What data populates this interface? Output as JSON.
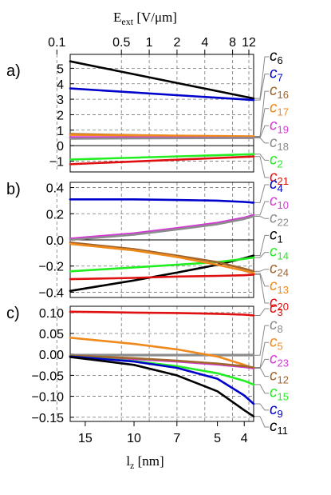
{
  "figure": {
    "top_axis": {
      "label_main": "E",
      "label_sub": "ext",
      "label_unit": " [V/μm]",
      "ticks": [
        "0.1",
        "0.5",
        "1",
        "2",
        "4",
        "8",
        "12"
      ]
    },
    "bottom_axis": {
      "label_main": "l",
      "label_sub": "z",
      "label_unit": " [nm]",
      "ticks": [
        "15",
        "10",
        "7",
        "5",
        "4"
      ]
    }
  },
  "chart_data": [
    {
      "panel": "a)",
      "type": "line",
      "xlabel": "l_z [nm]",
      "x_top_label": "E_ext [V/μm]",
      "x_range_nm": [
        17,
        3.7
      ],
      "ylim": [
        -1.7,
        5.9
      ],
      "y_ticks": [
        -1,
        0,
        1,
        2,
        3,
        4,
        5
      ],
      "y_tick_labels": [
        "−1",
        "0",
        "1",
        "2",
        "3",
        "4",
        "5"
      ],
      "grid": "dashed",
      "series": [
        {
          "name": "c",
          "sub": "6",
          "color": "#000000",
          "x": [
            17,
            3.7
          ],
          "y": [
            5.45,
            3.05
          ]
        },
        {
          "name": "c",
          "sub": "7",
          "color": "#0000cc",
          "x": [
            17,
            3.7
          ],
          "y": [
            3.7,
            2.95
          ]
        },
        {
          "name": "c",
          "sub": "16",
          "color": "#a0642d",
          "x": [
            17,
            3.7
          ],
          "y": [
            0.75,
            0.55
          ]
        },
        {
          "name": "c",
          "sub": "17",
          "color": "#f08a1c",
          "x": [
            17,
            3.7
          ],
          "y": [
            0.7,
            0.6
          ]
        },
        {
          "name": "c",
          "sub": "19",
          "color": "#d43ad4",
          "x": [
            17,
            3.7
          ],
          "y": [
            0.55,
            0.5
          ]
        },
        {
          "name": "c",
          "sub": "18",
          "color": "#8c8c8c",
          "x": [
            17,
            3.7
          ],
          "y": [
            0.45,
            0.5
          ]
        },
        {
          "name": "c",
          "sub": "2",
          "color": "#22ee22",
          "x": [
            17,
            3.7
          ],
          "y": [
            -0.9,
            -0.55
          ]
        },
        {
          "name": "c",
          "sub": "21",
          "color": "#e01010",
          "x": [
            17,
            3.7
          ],
          "y": [
            -1.2,
            -0.7
          ]
        }
      ]
    },
    {
      "panel": "b)",
      "type": "line",
      "xlabel": "l_z [nm]",
      "x_range_nm": [
        17,
        3.7
      ],
      "ylim": [
        -0.44,
        0.44
      ],
      "y_ticks": [
        -0.4,
        -0.2,
        0.0,
        0.2,
        0.4
      ],
      "y_tick_labels": [
        "−0.4",
        "−0.2",
        "0.0",
        "0.2",
        "0.4"
      ],
      "grid": "dashed",
      "series": [
        {
          "name": "c",
          "sub": "4",
          "color": "#0000cc",
          "x": [
            17,
            10,
            7,
            5,
            4,
            3.7
          ],
          "y": [
            0.31,
            0.31,
            0.305,
            0.3,
            0.29,
            0.285
          ]
        },
        {
          "name": "c",
          "sub": "10",
          "color": "#d43ad4",
          "x": [
            17,
            10,
            7,
            5,
            4,
            3.7
          ],
          "y": [
            0.01,
            0.05,
            0.09,
            0.13,
            0.17,
            0.19
          ]
        },
        {
          "name": "c",
          "sub": "22",
          "color": "#8c8c8c",
          "x": [
            17,
            10,
            7,
            5,
            4,
            3.7
          ],
          "y": [
            0.0,
            0.04,
            0.08,
            0.12,
            0.16,
            0.18
          ]
        },
        {
          "name": "c",
          "sub": "1",
          "color": "#000000",
          "x": [
            17,
            10,
            7,
            5,
            4,
            3.7
          ],
          "y": [
            -0.39,
            -0.31,
            -0.25,
            -0.19,
            -0.14,
            -0.12
          ]
        },
        {
          "name": "c",
          "sub": "14",
          "color": "#22ee22",
          "x": [
            17,
            10,
            7,
            5,
            4,
            3.7
          ],
          "y": [
            -0.24,
            -0.21,
            -0.19,
            -0.17,
            -0.145,
            -0.135
          ]
        },
        {
          "name": "c",
          "sub": "24",
          "color": "#a0642d",
          "x": [
            17,
            10,
            7,
            5,
            4,
            3.7
          ],
          "y": [
            -0.02,
            -0.07,
            -0.12,
            -0.17,
            -0.22,
            -0.24
          ]
        },
        {
          "name": "c",
          "sub": "13",
          "color": "#f08a1c",
          "x": [
            17,
            10,
            7,
            5,
            4,
            3.7
          ],
          "y": [
            -0.03,
            -0.08,
            -0.13,
            -0.19,
            -0.235,
            -0.255
          ]
        },
        {
          "name": "c",
          "sub": "20",
          "color": "#e01010",
          "x": [
            17,
            10,
            7,
            5,
            4,
            3.7
          ],
          "y": [
            -0.3,
            -0.29,
            -0.28,
            -0.275,
            -0.27,
            -0.265
          ]
        }
      ]
    },
    {
      "panel": "c)",
      "type": "line",
      "xlabel": "l_z [nm]",
      "x_range_nm": [
        17,
        3.7
      ],
      "ylim": [
        -0.16,
        0.115
      ],
      "y_ticks": [
        -0.15,
        -0.1,
        -0.05,
        0.0,
        0.05,
        0.1
      ],
      "y_tick_labels": [
        "−0.15",
        "−0.10",
        "−0.05",
        "0.00",
        "0.05",
        "0.10"
      ],
      "grid": "dashed",
      "series": [
        {
          "name": "c",
          "sub": "3",
          "color": "#e01010",
          "x": [
            17,
            10,
            7,
            5,
            4,
            3.7
          ],
          "y": [
            0.102,
            0.1,
            0.099,
            0.097,
            0.095,
            0.093
          ]
        },
        {
          "name": "c",
          "sub": "8",
          "color": "#8c8c8c",
          "x": [
            17,
            10,
            7,
            5,
            4,
            3.7
          ],
          "y": [
            -0.002,
            -0.002,
            -0.002,
            -0.002,
            -0.002,
            -0.002
          ]
        },
        {
          "name": "c",
          "sub": "5",
          "color": "#f08a1c",
          "x": [
            17,
            10,
            7,
            5,
            4,
            3.7
          ],
          "y": [
            0.04,
            0.025,
            0.012,
            -0.005,
            -0.025,
            -0.033
          ]
        },
        {
          "name": "c",
          "sub": "23",
          "color": "#d43ad4",
          "x": [
            17,
            10,
            7,
            5,
            4,
            3.7
          ],
          "y": [
            -0.005,
            -0.011,
            -0.017,
            -0.024,
            -0.03,
            -0.033
          ]
        },
        {
          "name": "c",
          "sub": "12",
          "color": "#a0642d",
          "x": [
            17,
            10,
            7,
            5,
            4,
            3.7
          ],
          "y": [
            -0.003,
            -0.009,
            -0.015,
            -0.022,
            -0.028,
            -0.031
          ]
        },
        {
          "name": "c",
          "sub": "15",
          "color": "#22ee22",
          "x": [
            17,
            10,
            7,
            5,
            4,
            3.7
          ],
          "y": [
            -0.005,
            -0.016,
            -0.028,
            -0.045,
            -0.063,
            -0.072
          ]
        },
        {
          "name": "c",
          "sub": "9",
          "color": "#0000cc",
          "x": [
            17,
            10,
            7,
            5,
            4,
            3.7
          ],
          "y": [
            -0.005,
            -0.017,
            -0.032,
            -0.058,
            -0.098,
            -0.118
          ]
        },
        {
          "name": "c",
          "sub": "11",
          "color": "#000000",
          "x": [
            17,
            10,
            7,
            5,
            4,
            3.7
          ],
          "y": [
            -0.006,
            -0.025,
            -0.05,
            -0.088,
            -0.133,
            -0.148
          ]
        }
      ]
    }
  ]
}
